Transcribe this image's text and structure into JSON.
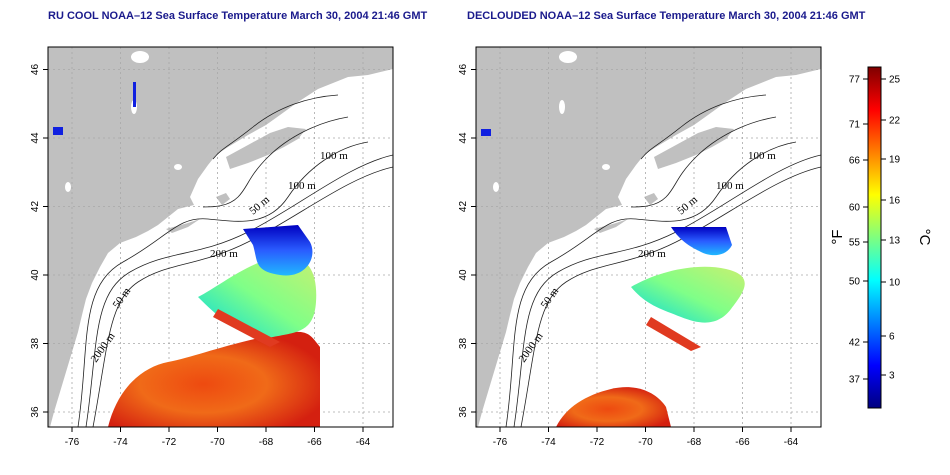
{
  "maps": [
    {
      "title": "RU COOL NOAA–12 Sea Surface Temperature March 30, 2004 21:46 GMT",
      "kind": "cool"
    },
    {
      "title": "DECLOUDED NOAA–12 Sea Surface Temperature March 30, 2004 21:46 GMT",
      "kind": "declouded"
    }
  ],
  "axes": {
    "lon_ticks": [
      "-76",
      "-74",
      "-72",
      "-70",
      "-68",
      "-66",
      "-64"
    ],
    "lat_ticks": [
      "36",
      "38",
      "40",
      "42",
      "44",
      "46"
    ]
  },
  "contours": [
    "100 m",
    "100 m",
    "50 m",
    "200 m",
    "50 m",
    "2000 m"
  ],
  "colorbar": {
    "fahrenheit_ticks": [
      "77",
      "71",
      "66",
      "60",
      "55",
      "50",
      "42",
      "37"
    ],
    "celsius_ticks": [
      "25",
      "22",
      "19",
      "16",
      "13",
      "10",
      "6",
      "3"
    ],
    "left_unit": "°F",
    "right_unit": "°C",
    "colors": [
      "#00007f",
      "#0000ff",
      "#007fff",
      "#00ffff",
      "#7fff7f",
      "#ffff00",
      "#ff7f00",
      "#ff0000",
      "#7f0000"
    ]
  },
  "colors": {
    "land": "#c0c0c0",
    "ocean": "#ffffff",
    "title": "#1a1a8c"
  }
}
